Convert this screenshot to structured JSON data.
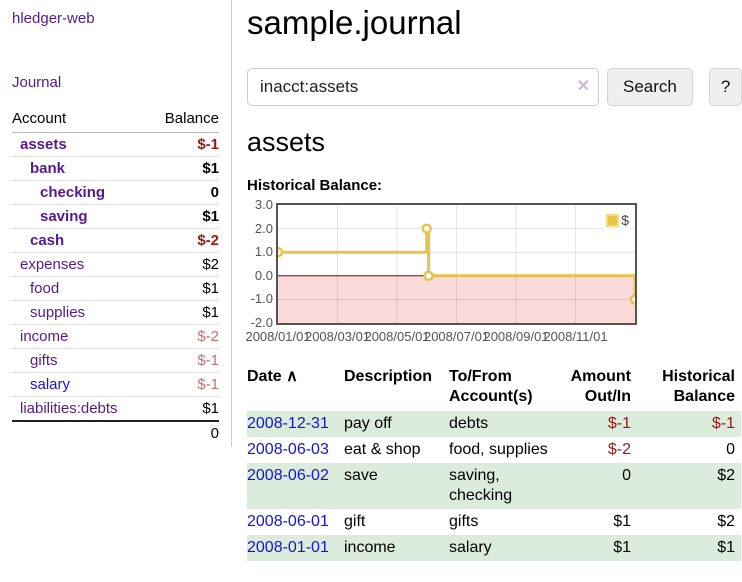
{
  "colors": {
    "link_purple": "#551a8b",
    "link_blue": "#1414d6",
    "negative_strong": "#9e1616",
    "negative_faded": "#c2716e",
    "row_green": "#dcecdc",
    "chart_line_gold": "#e7c24c",
    "chart_negative_region": "#fbdada",
    "chart_zero_line": "#8b0000",
    "chart_border": "#545454"
  },
  "sidebar": {
    "app_title": "hledger-web",
    "journal_link": "Journal",
    "accounts_table": {
      "headers": {
        "account": "Account",
        "balance": "Balance"
      },
      "rows": [
        {
          "name": "assets",
          "balance": "$-1",
          "level": 0,
          "bold": true,
          "neg": "strong"
        },
        {
          "name": "bank",
          "balance": "$1",
          "level": 1,
          "bold": true,
          "neg": ""
        },
        {
          "name": "checking",
          "balance": "0",
          "level": 2,
          "bold": true,
          "neg": ""
        },
        {
          "name": "saving",
          "balance": "$1",
          "level": 2,
          "bold": true,
          "neg": ""
        },
        {
          "name": "cash",
          "balance": "$-2",
          "level": 1,
          "bold": true,
          "neg": "strong"
        },
        {
          "name": "expenses",
          "balance": "$2",
          "level": 0,
          "bold": false,
          "neg": ""
        },
        {
          "name": "food",
          "balance": "$1",
          "level": 1,
          "bold": false,
          "neg": ""
        },
        {
          "name": "supplies",
          "balance": "$1",
          "level": 1,
          "bold": false,
          "neg": ""
        },
        {
          "name": "income",
          "balance": "$-2",
          "level": 0,
          "bold": false,
          "neg": "faded"
        },
        {
          "name": "gifts",
          "balance": "$-1",
          "level": 1,
          "bold": false,
          "neg": "faded"
        },
        {
          "name": "salary",
          "balance": "$-1",
          "level": 1,
          "bold": false,
          "neg": "faded",
          "blue": true
        },
        {
          "name": "liabilities:debts",
          "balance": "$1",
          "level": 0,
          "bold": false,
          "neg": ""
        }
      ],
      "total": "0"
    }
  },
  "main": {
    "page_title": "sample.journal",
    "search": {
      "value": "inacct:assets",
      "clear_icon": "✕",
      "search_button": "Search",
      "help_button": "?"
    },
    "account_heading": "assets",
    "chart_title": "Historical Balance:"
  },
  "chart_data": {
    "type": "line",
    "title": "Historical Balance",
    "step": true,
    "series": [
      {
        "name": "$",
        "color": "#e7c24c",
        "points": [
          {
            "x": "2008-01-01",
            "y": 1
          },
          {
            "x": "2008-06-01",
            "y": 2
          },
          {
            "x": "2008-06-03",
            "y": 0
          },
          {
            "x": "2008-12-31",
            "y": -1
          }
        ]
      }
    ],
    "x_start": "2008-01-01",
    "x_end": "2008-12-31",
    "ylim": [
      -2,
      3
    ],
    "yticks": [
      "3.0",
      "2.0",
      "1.0",
      "0.0",
      "-1.0",
      "-2.0"
    ],
    "xticks": [
      "2008/01/01",
      "2008/03/01",
      "2008/05/01",
      "2008/07/01",
      "2008/09/01",
      "2008/11/01"
    ],
    "grid": true,
    "legend_position": "top-right",
    "negative_region_below": 0
  },
  "register_table": {
    "headers": {
      "date": "Date",
      "sort_icon": "∧",
      "description": "Description",
      "accounts": "To/From Account(s)",
      "amount": "Amount Out/In",
      "balance": "Historical Balance"
    },
    "rows": [
      {
        "date": "2008-12-31",
        "description": "pay off",
        "accounts": "debts",
        "amount": "$-1",
        "balance": "$-1",
        "amount_neg": true,
        "balance_neg": true,
        "shaded": true
      },
      {
        "date": "2008-06-03",
        "description": "eat & shop",
        "accounts": "food, supplies",
        "amount": "$-2",
        "balance": "0",
        "amount_neg": true,
        "balance_neg": false,
        "shaded": false
      },
      {
        "date": "2008-06-02",
        "description": "save",
        "accounts": "saving, checking",
        "amount": "0",
        "balance": "$2",
        "amount_neg": false,
        "balance_neg": false,
        "shaded": true
      },
      {
        "date": "2008-06-01",
        "description": "gift",
        "accounts": "gifts",
        "amount": "$1",
        "balance": "$2",
        "amount_neg": false,
        "balance_neg": false,
        "shaded": false
      },
      {
        "date": "2008-01-01",
        "description": "income",
        "accounts": "salary",
        "amount": "$1",
        "balance": "$1",
        "amount_neg": false,
        "balance_neg": false,
        "shaded": true
      }
    ]
  }
}
